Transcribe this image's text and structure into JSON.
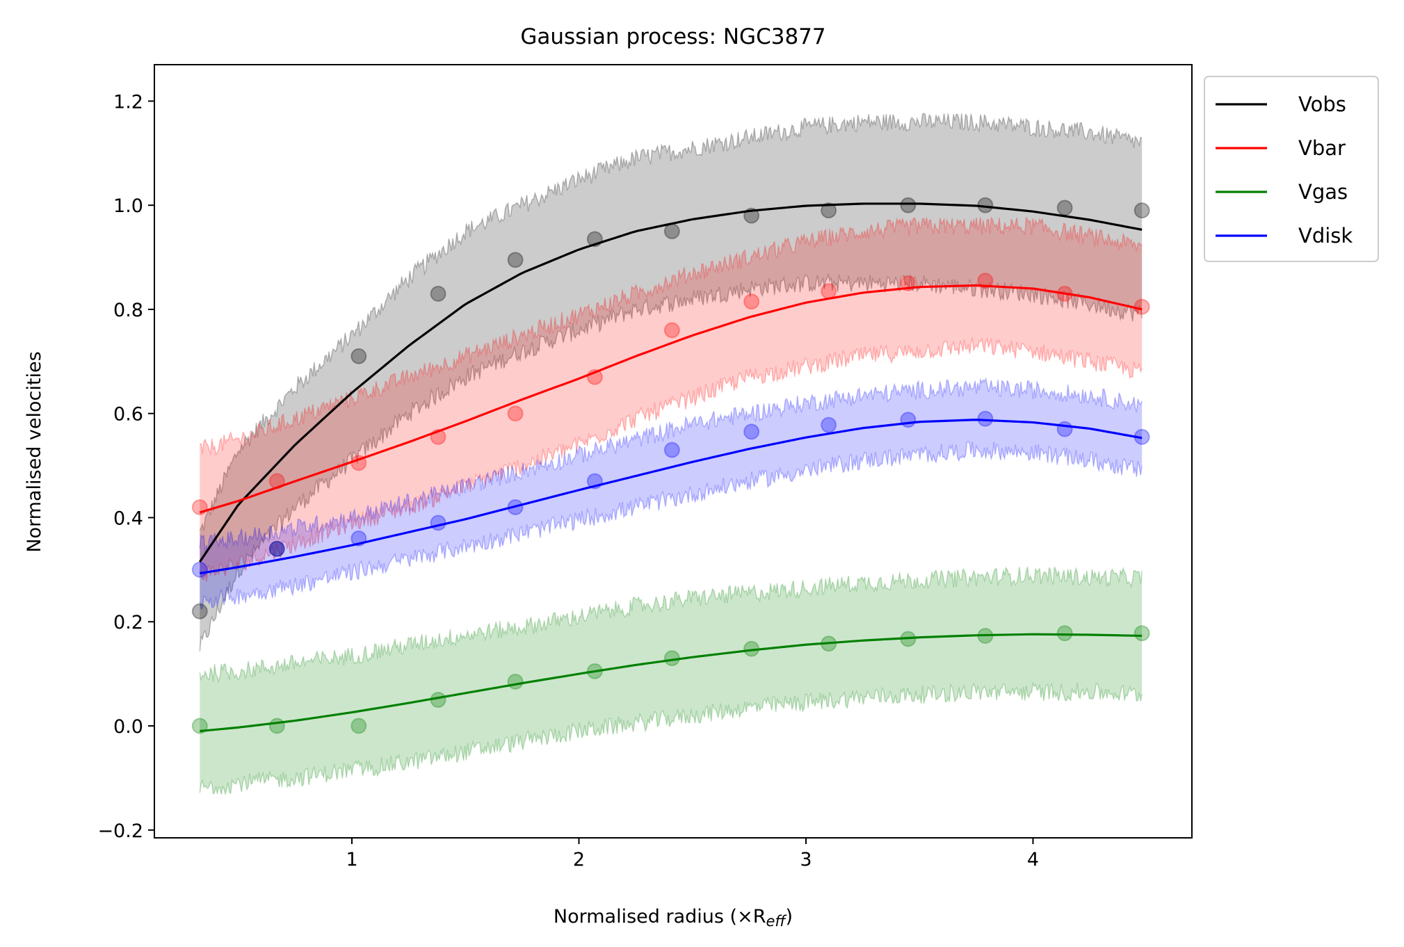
{
  "chart_data": {
    "type": "line",
    "title": "Gaussian process: NGC3877",
    "xlabel": "Normalised radius (×R",
    "xlabel_sub": "eff",
    "xlabel_close": ")",
    "ylabel": "Normalised velocities",
    "xlim": [
      0.13,
      4.7
    ],
    "ylim": [
      -0.215,
      1.27
    ],
    "xticks": [
      1,
      2,
      3,
      4
    ],
    "xtick_labels": [
      "1",
      "2",
      "3",
      "4"
    ],
    "yticks": [
      -0.2,
      0.0,
      0.2,
      0.4,
      0.6,
      0.8,
      1.0,
      1.2
    ],
    "ytick_labels": [
      "−0.2",
      "0.0",
      "0.2",
      "0.4",
      "0.6",
      "0.8",
      "1.0",
      "1.2"
    ],
    "grid": false,
    "legend_position": "outside-top-right",
    "points_x": [
      0.33,
      0.67,
      1.03,
      1.38,
      1.72,
      2.07,
      2.41,
      2.76,
      3.1,
      3.45,
      3.79,
      4.14,
      4.48
    ],
    "series": [
      {
        "name": "Vobs",
        "color": "#000000",
        "points_y": [
          0.22,
          0.34,
          0.71,
          0.83,
          0.895,
          0.935,
          0.95,
          0.98,
          0.99,
          1.0,
          1.0,
          0.995,
          0.99
        ],
        "curve_x": [
          0.33,
          0.5,
          0.75,
          1.0,
          1.25,
          1.5,
          1.75,
          2.0,
          2.25,
          2.5,
          2.75,
          3.0,
          3.25,
          3.5,
          3.75,
          4.0,
          4.25,
          4.48
        ],
        "curve_y": [
          0.315,
          0.425,
          0.54,
          0.64,
          0.73,
          0.81,
          0.87,
          0.915,
          0.95,
          0.973,
          0.989,
          0.999,
          1.003,
          1.003,
          0.999,
          0.988,
          0.972,
          0.953
        ],
        "band_upper": [
          0.37,
          0.53,
          0.65,
          0.75,
          0.86,
          0.95,
          1.0,
          1.05,
          1.09,
          1.11,
          1.13,
          1.15,
          1.16,
          1.16,
          1.16,
          1.15,
          1.14,
          1.12
        ],
        "band_lower": [
          0.15,
          0.3,
          0.42,
          0.51,
          0.6,
          0.67,
          0.72,
          0.76,
          0.8,
          0.82,
          0.84,
          0.85,
          0.85,
          0.85,
          0.84,
          0.83,
          0.81,
          0.79
        ]
      },
      {
        "name": "Vbar",
        "color": "#ff0000",
        "points_y": [
          0.42,
          0.47,
          0.505,
          0.555,
          0.6,
          0.67,
          0.76,
          0.815,
          0.835,
          0.85,
          0.855,
          0.83,
          0.805
        ],
        "curve_x": [
          0.33,
          0.5,
          0.75,
          1.0,
          1.25,
          1.5,
          1.75,
          2.0,
          2.25,
          2.5,
          2.75,
          3.0,
          3.25,
          3.5,
          3.75,
          4.0,
          4.25,
          4.48
        ],
        "curve_y": [
          0.41,
          0.432,
          0.47,
          0.507,
          0.545,
          0.585,
          0.627,
          0.667,
          0.71,
          0.75,
          0.785,
          0.813,
          0.832,
          0.843,
          0.846,
          0.84,
          0.823,
          0.8
        ],
        "band_upper": [
          0.53,
          0.55,
          0.59,
          0.63,
          0.67,
          0.71,
          0.75,
          0.79,
          0.83,
          0.87,
          0.9,
          0.93,
          0.95,
          0.96,
          0.96,
          0.96,
          0.94,
          0.92
        ],
        "band_lower": [
          0.29,
          0.31,
          0.35,
          0.39,
          0.42,
          0.46,
          0.5,
          0.54,
          0.59,
          0.63,
          0.67,
          0.69,
          0.71,
          0.72,
          0.73,
          0.72,
          0.7,
          0.68
        ]
      },
      {
        "name": "Vgas",
        "color": "#008000",
        "points_y": [
          0.0,
          0.0,
          0.0,
          0.05,
          0.085,
          0.105,
          0.13,
          0.148,
          0.158,
          0.167,
          0.173,
          0.178,
          0.178
        ],
        "curve_x": [
          0.33,
          0.5,
          0.75,
          1.0,
          1.25,
          1.5,
          1.75,
          2.0,
          2.25,
          2.5,
          2.75,
          3.0,
          3.25,
          3.5,
          3.75,
          4.0,
          4.25,
          4.48
        ],
        "curve_y": [
          -0.01,
          -0.003,
          0.01,
          0.026,
          0.044,
          0.063,
          0.082,
          0.1,
          0.117,
          0.132,
          0.145,
          0.156,
          0.164,
          0.17,
          0.174,
          0.176,
          0.175,
          0.173
        ],
        "band_upper": [
          0.1,
          0.105,
          0.12,
          0.135,
          0.155,
          0.175,
          0.19,
          0.21,
          0.23,
          0.245,
          0.255,
          0.265,
          0.275,
          0.28,
          0.285,
          0.29,
          0.285,
          0.285
        ],
        "band_lower": [
          -0.12,
          -0.11,
          -0.1,
          -0.085,
          -0.07,
          -0.05,
          -0.03,
          -0.01,
          0.005,
          0.02,
          0.035,
          0.045,
          0.055,
          0.06,
          0.065,
          0.065,
          0.065,
          0.06
        ]
      },
      {
        "name": "Vdisk",
        "color": "#0000ff",
        "points_y": [
          0.3,
          0.34,
          0.36,
          0.39,
          0.42,
          0.47,
          0.53,
          0.565,
          0.578,
          0.588,
          0.59,
          0.57,
          0.555
        ],
        "curve_x": [
          0.33,
          0.5,
          0.75,
          1.0,
          1.25,
          1.5,
          1.75,
          2.0,
          2.25,
          2.5,
          2.75,
          3.0,
          3.25,
          3.5,
          3.75,
          4.0,
          4.25,
          4.48
        ],
        "curve_y": [
          0.293,
          0.305,
          0.325,
          0.347,
          0.372,
          0.397,
          0.425,
          0.453,
          0.48,
          0.507,
          0.532,
          0.554,
          0.572,
          0.584,
          0.588,
          0.583,
          0.571,
          0.553
        ],
        "band_upper": [
          0.35,
          0.36,
          0.38,
          0.4,
          0.43,
          0.46,
          0.49,
          0.52,
          0.55,
          0.58,
          0.6,
          0.62,
          0.635,
          0.645,
          0.65,
          0.645,
          0.635,
          0.615
        ],
        "band_lower": [
          0.24,
          0.25,
          0.27,
          0.295,
          0.32,
          0.345,
          0.37,
          0.395,
          0.42,
          0.445,
          0.47,
          0.49,
          0.51,
          0.52,
          0.53,
          0.525,
          0.51,
          0.49
        ]
      }
    ]
  }
}
